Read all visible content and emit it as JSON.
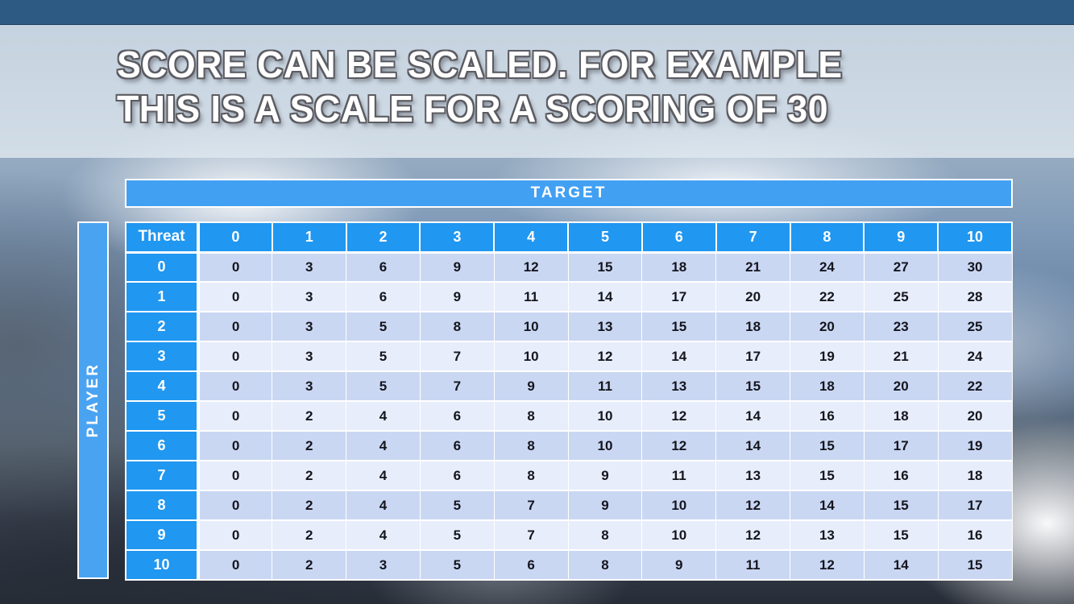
{
  "slide": {
    "title_line1": "SCORE CAN BE SCALED. FOR EXAMPLE",
    "title_line2": "THIS IS A SCALE FOR A SCORING OF 30"
  },
  "chart_data": {
    "type": "table",
    "title": "TARGET",
    "row_axis_label": "PLAYER",
    "corner_label": "Threat",
    "columns": [
      "0",
      "1",
      "2",
      "3",
      "4",
      "5",
      "6",
      "7",
      "8",
      "9",
      "10"
    ],
    "row_headers": [
      "0",
      "1",
      "2",
      "3",
      "4",
      "5",
      "6",
      "7",
      "8",
      "9",
      "10"
    ],
    "rows": [
      [
        0,
        3,
        6,
        9,
        12,
        15,
        18,
        21,
        24,
        27,
        30
      ],
      [
        0,
        3,
        6,
        9,
        11,
        14,
        17,
        20,
        22,
        25,
        28
      ],
      [
        0,
        3,
        5,
        8,
        10,
        13,
        15,
        18,
        20,
        23,
        25
      ],
      [
        0,
        3,
        5,
        7,
        10,
        12,
        14,
        17,
        19,
        21,
        24
      ],
      [
        0,
        3,
        5,
        7,
        9,
        11,
        13,
        15,
        18,
        20,
        22
      ],
      [
        0,
        2,
        4,
        6,
        8,
        10,
        12,
        14,
        16,
        18,
        20
      ],
      [
        0,
        2,
        4,
        6,
        8,
        10,
        12,
        14,
        15,
        17,
        19
      ],
      [
        0,
        2,
        4,
        6,
        8,
        9,
        11,
        13,
        15,
        16,
        18
      ],
      [
        0,
        2,
        4,
        5,
        7,
        9,
        10,
        12,
        14,
        15,
        17
      ],
      [
        0,
        2,
        4,
        5,
        7,
        8,
        10,
        12,
        13,
        15,
        16
      ],
      [
        0,
        2,
        3,
        5,
        6,
        8,
        9,
        11,
        12,
        14,
        15
      ]
    ]
  },
  "colors": {
    "header_blue": "#2097f1",
    "axis_bar_blue": "#42a0f3",
    "row_even": "#c9d7f3",
    "row_odd": "#e7edfb",
    "top_banner_navy": "#2d5a83",
    "value_text": "#15151d",
    "title_text": "#ffffff",
    "title_outline": "#5b5b61"
  }
}
